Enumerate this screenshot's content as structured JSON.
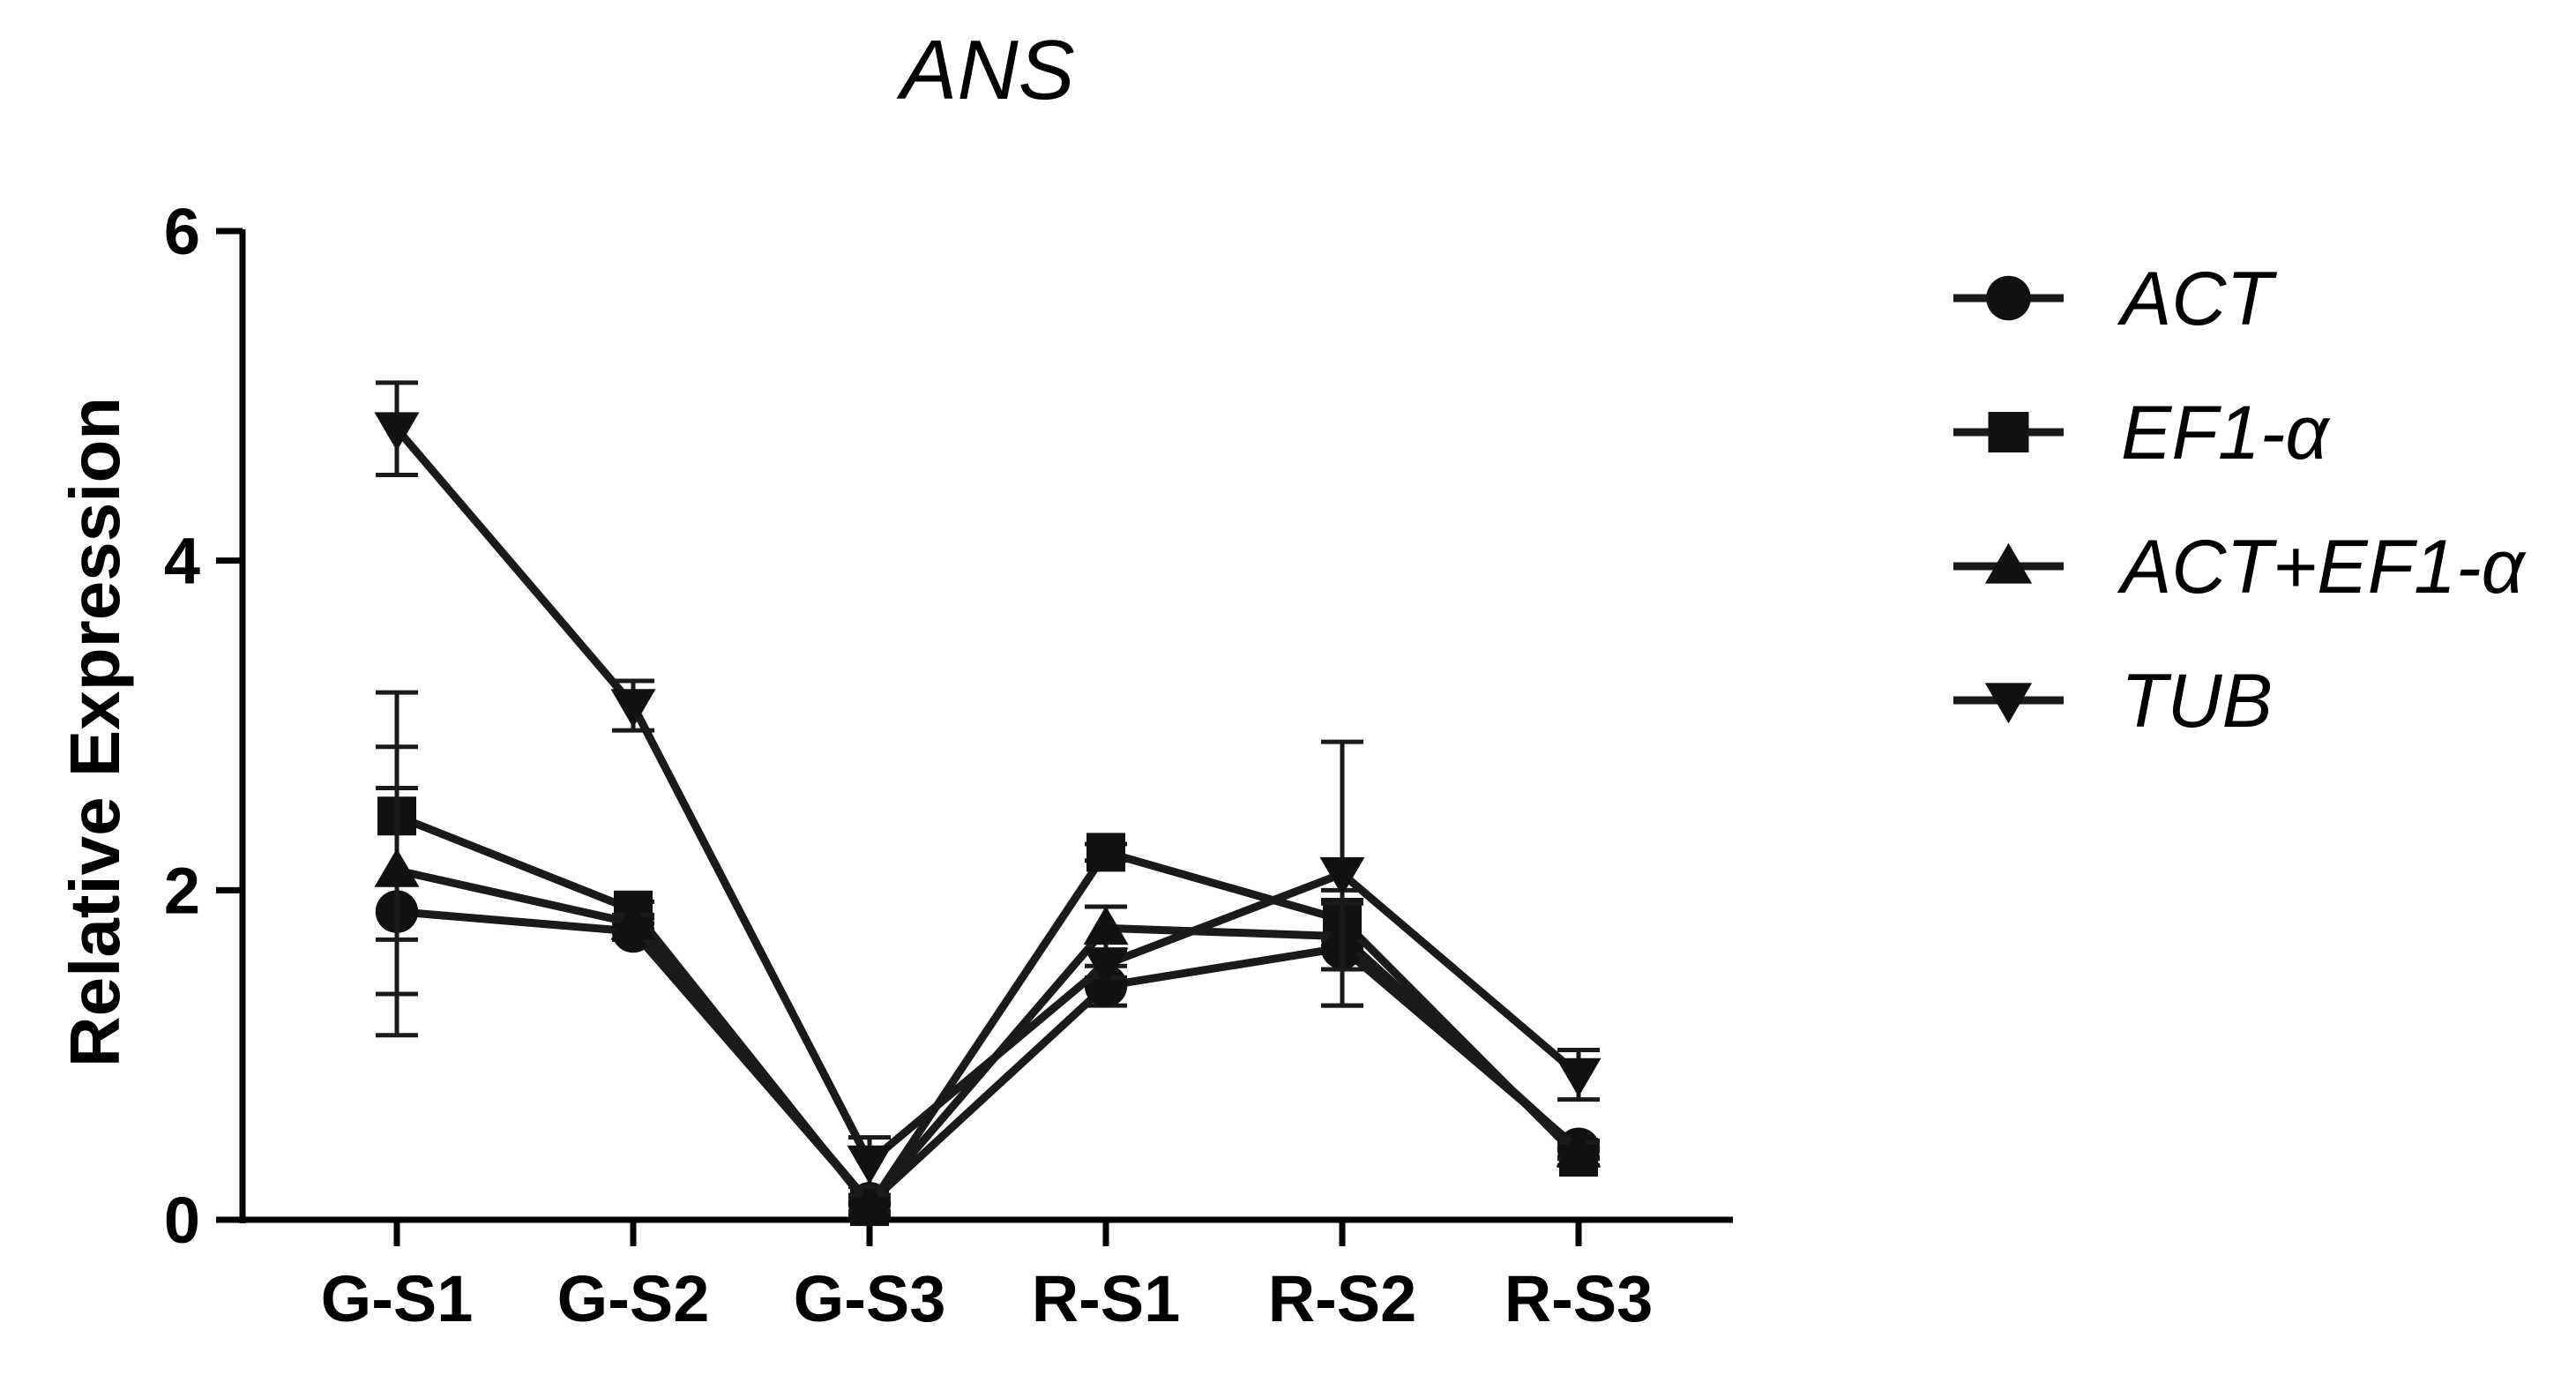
{
  "chart_data": {
    "type": "line",
    "title": "ANS",
    "xlabel": "",
    "ylabel": "Relative Expression",
    "categories": [
      "G-S1",
      "G-S2",
      "G-S3",
      "R-S1",
      "R-S2",
      "R-S3"
    ],
    "ylim": [
      0,
      6
    ],
    "yticks": [
      0,
      2,
      4,
      6
    ],
    "grid": false,
    "legend_position": "right",
    "series": [
      {
        "name": "ACT",
        "marker": "circle",
        "values": [
          1.87,
          1.75,
          0.1,
          1.42,
          1.65,
          0.43
        ],
        "errors": [
          0.75,
          0.05,
          0.05,
          0.12,
          0.35,
          0.05
        ]
      },
      {
        "name": "EF1-α",
        "marker": "square",
        "values": [
          2.45,
          1.88,
          0.08,
          2.23,
          1.82,
          0.38
        ],
        "errors": [
          0.75,
          0.05,
          0.05,
          0.05,
          0.12,
          0.05
        ]
      },
      {
        "name": "ACT+EF1-α",
        "marker": "triangle-up",
        "values": [
          2.12,
          1.8,
          0.1,
          1.77,
          1.72,
          0.42
        ],
        "errors": [
          0.75,
          0.05,
          0.05,
          0.13,
          0.2,
          0.05
        ]
      },
      {
        "name": "TUB",
        "marker": "triangle-down",
        "values": [
          4.8,
          3.12,
          0.35,
          1.55,
          2.1,
          0.88
        ],
        "errors": [
          0.28,
          0.15,
          0.15,
          0.08,
          0.8,
          0.15
        ]
      }
    ],
    "colors": {
      "line": "#1a1a1a",
      "marker": "#111111"
    }
  }
}
